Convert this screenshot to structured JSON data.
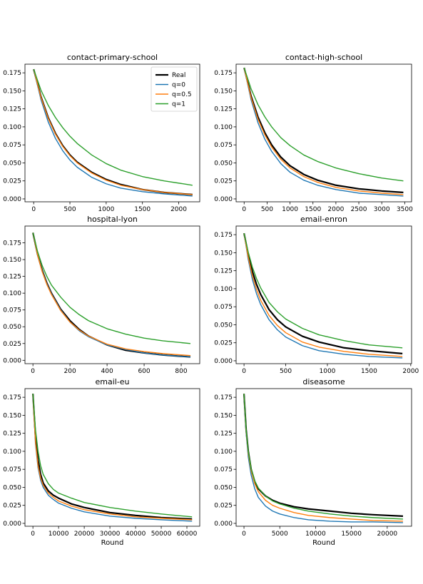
{
  "chart_data": [
    {
      "type": "line",
      "title": "contact-primary-school",
      "xlabel": "",
      "ylabel": "",
      "xlim": [
        -120,
        2290
      ],
      "ylim": [
        -0.004,
        0.187
      ],
      "xticks": [
        0,
        500,
        1000,
        1500,
        2000
      ],
      "xtick_labels": [
        "0",
        "500",
        "1000",
        "1500",
        "2000"
      ],
      "yticks": [
        0.0,
        0.025,
        0.05,
        0.075,
        0.1,
        0.125,
        0.15,
        0.175
      ],
      "ytick_labels": [
        "0.000",
        "0.025",
        "0.050",
        "0.075",
        "0.100",
        "0.125",
        "0.150",
        "0.175"
      ],
      "grid": false,
      "legend": "top-right",
      "series": [
        {
          "name": "Real",
          "color": "#000000",
          "x": [
            0,
            100,
            200,
            300,
            400,
            500,
            600,
            800,
            1000,
            1200,
            1500,
            1800,
            2190
          ],
          "y": [
            0.18,
            0.142,
            0.113,
            0.091,
            0.074,
            0.061,
            0.051,
            0.037,
            0.027,
            0.02,
            0.013,
            0.009,
            0.006
          ]
        },
        {
          "name": "q=0",
          "color": "#1f77b4",
          "x": [
            0,
            100,
            200,
            300,
            400,
            500,
            600,
            800,
            1000,
            1200,
            1500,
            1800,
            2190
          ],
          "y": [
            0.18,
            0.138,
            0.107,
            0.084,
            0.067,
            0.054,
            0.044,
            0.03,
            0.021,
            0.015,
            0.01,
            0.007,
            0.004
          ]
        },
        {
          "name": "q=0.5",
          "color": "#ff7f0e",
          "x": [
            0,
            100,
            200,
            300,
            400,
            500,
            600,
            800,
            1000,
            1200,
            1500,
            1800,
            2190
          ],
          "y": [
            0.18,
            0.141,
            0.112,
            0.09,
            0.073,
            0.06,
            0.05,
            0.036,
            0.026,
            0.019,
            0.013,
            0.009,
            0.006
          ]
        },
        {
          "name": "q=1",
          "color": "#2ca02c",
          "x": [
            0,
            100,
            200,
            300,
            400,
            500,
            600,
            800,
            1000,
            1200,
            1500,
            1800,
            2190
          ],
          "y": [
            0.18,
            0.151,
            0.13,
            0.113,
            0.099,
            0.087,
            0.077,
            0.061,
            0.049,
            0.04,
            0.031,
            0.025,
            0.019
          ]
        }
      ]
    },
    {
      "type": "line",
      "title": "contact-high-school",
      "xlabel": "",
      "ylabel": "",
      "xlim": [
        -175,
        3650
      ],
      "ylim": [
        -0.004,
        0.187
      ],
      "xticks": [
        0,
        500,
        1000,
        1500,
        2000,
        2500,
        3000,
        3500
      ],
      "xtick_labels": [
        "0",
        "500",
        "1000",
        "1500",
        "2000",
        "2500",
        "3000",
        "3500"
      ],
      "yticks": [
        0.0,
        0.025,
        0.05,
        0.075,
        0.1,
        0.125,
        0.15,
        0.175
      ],
      "ytick_labels": [
        "0.000",
        "0.025",
        "0.050",
        "0.075",
        "0.100",
        "0.125",
        "0.150",
        "0.175"
      ],
      "grid": false,
      "series": [
        {
          "name": "Real",
          "color": "#000000",
          "x": [
            0,
            150,
            300,
            450,
            600,
            800,
            1000,
            1300,
            1600,
            2000,
            2500,
            3000,
            3470
          ],
          "y": [
            0.182,
            0.143,
            0.114,
            0.092,
            0.075,
            0.058,
            0.046,
            0.034,
            0.026,
            0.019,
            0.014,
            0.011,
            0.009
          ]
        },
        {
          "name": "q=0",
          "color": "#1f77b4",
          "x": [
            0,
            150,
            300,
            450,
            600,
            800,
            1000,
            1300,
            1600,
            2000,
            2500,
            3000,
            3470
          ],
          "y": [
            0.182,
            0.138,
            0.106,
            0.083,
            0.066,
            0.049,
            0.037,
            0.026,
            0.019,
            0.013,
            0.008,
            0.006,
            0.004
          ]
        },
        {
          "name": "q=0.5",
          "color": "#ff7f0e",
          "x": [
            0,
            150,
            300,
            450,
            600,
            800,
            1000,
            1300,
            1600,
            2000,
            2500,
            3000,
            3470
          ],
          "y": [
            0.182,
            0.141,
            0.111,
            0.089,
            0.072,
            0.055,
            0.043,
            0.031,
            0.023,
            0.016,
            0.011,
            0.008,
            0.006
          ]
        },
        {
          "name": "q=1",
          "color": "#2ca02c",
          "x": [
            0,
            150,
            300,
            450,
            600,
            800,
            1000,
            1300,
            1600,
            2000,
            2500,
            3000,
            3470
          ],
          "y": [
            0.182,
            0.153,
            0.131,
            0.114,
            0.1,
            0.085,
            0.074,
            0.061,
            0.052,
            0.043,
            0.035,
            0.029,
            0.025
          ]
        }
      ]
    },
    {
      "type": "line",
      "title": "hospital-lyon",
      "xlabel": "",
      "ylabel": "",
      "xlim": [
        -43,
        900
      ],
      "ylim": [
        -0.005,
        0.2
      ],
      "xticks": [
        0,
        200,
        400,
        600,
        800
      ],
      "xtick_labels": [
        "0",
        "200",
        "400",
        "600",
        "800"
      ],
      "yticks": [
        0.0,
        0.025,
        0.05,
        0.075,
        0.1,
        0.125,
        0.15,
        0.175
      ],
      "ytick_labels": [
        "0.000",
        "0.025",
        "0.050",
        "0.075",
        "0.100",
        "0.125",
        "0.150",
        "0.175"
      ],
      "grid": false,
      "series": [
        {
          "name": "Real",
          "color": "#000000",
          "x": [
            0,
            25,
            50,
            75,
            100,
            150,
            200,
            250,
            300,
            400,
            500,
            600,
            700,
            850
          ],
          "y": [
            0.19,
            0.158,
            0.134,
            0.115,
            0.1,
            0.076,
            0.059,
            0.046,
            0.036,
            0.023,
            0.015,
            0.011,
            0.008,
            0.005
          ]
        },
        {
          "name": "q=0",
          "color": "#1f77b4",
          "x": [
            0,
            25,
            50,
            75,
            100,
            150,
            200,
            250,
            300,
            400,
            500,
            600,
            700,
            850
          ],
          "y": [
            0.19,
            0.158,
            0.133,
            0.114,
            0.099,
            0.075,
            0.057,
            0.044,
            0.035,
            0.023,
            0.016,
            0.011,
            0.008,
            0.005
          ]
        },
        {
          "name": "q=0.5",
          "color": "#ff7f0e",
          "x": [
            0,
            25,
            50,
            75,
            100,
            150,
            200,
            250,
            300,
            400,
            500,
            600,
            700,
            850
          ],
          "y": [
            0.19,
            0.157,
            0.132,
            0.113,
            0.098,
            0.074,
            0.057,
            0.045,
            0.036,
            0.024,
            0.017,
            0.013,
            0.01,
            0.007
          ]
        },
        {
          "name": "q=1",
          "color": "#2ca02c",
          "x": [
            0,
            25,
            50,
            75,
            100,
            150,
            200,
            250,
            300,
            400,
            500,
            600,
            700,
            850
          ],
          "y": [
            0.19,
            0.162,
            0.141,
            0.125,
            0.112,
            0.094,
            0.079,
            0.068,
            0.059,
            0.047,
            0.039,
            0.033,
            0.029,
            0.025
          ]
        }
      ]
    },
    {
      "type": "line",
      "title": "email-enron",
      "xlabel": "",
      "ylabel": "",
      "xlim": [
        -95,
        2010
      ],
      "ylim": [
        -0.004,
        0.187
      ],
      "xticks": [
        0,
        500,
        1000,
        1500,
        2000
      ],
      "xtick_labels": [
        "0",
        "500",
        "1000",
        "1500",
        "2000"
      ],
      "yticks": [
        0.0,
        0.025,
        0.05,
        0.075,
        0.1,
        0.125,
        0.15,
        0.175
      ],
      "ytick_labels": [
        "0.000",
        "0.025",
        "0.050",
        "0.075",
        "0.100",
        "0.125",
        "0.150",
        "0.175"
      ],
      "grid": false,
      "series": [
        {
          "name": "Real",
          "color": "#000000",
          "x": [
            0,
            50,
            100,
            150,
            200,
            300,
            400,
            500,
            700,
            900,
            1200,
            1500,
            1900
          ],
          "y": [
            0.177,
            0.148,
            0.124,
            0.106,
            0.092,
            0.071,
            0.057,
            0.047,
            0.034,
            0.026,
            0.018,
            0.014,
            0.01
          ]
        },
        {
          "name": "q=0",
          "color": "#1f77b4",
          "x": [
            0,
            50,
            100,
            150,
            200,
            300,
            400,
            500,
            700,
            900,
            1200,
            1500,
            1900
          ],
          "y": [
            0.177,
            0.141,
            0.113,
            0.093,
            0.078,
            0.057,
            0.043,
            0.033,
            0.021,
            0.014,
            0.009,
            0.006,
            0.004
          ]
        },
        {
          "name": "q=0.5",
          "color": "#ff7f0e",
          "x": [
            0,
            50,
            100,
            150,
            200,
            300,
            400,
            500,
            700,
            900,
            1200,
            1500,
            1900
          ],
          "y": [
            0.177,
            0.144,
            0.118,
            0.099,
            0.084,
            0.063,
            0.049,
            0.039,
            0.026,
            0.019,
            0.013,
            0.009,
            0.006
          ]
        },
        {
          "name": "q=1",
          "color": "#2ca02c",
          "x": [
            0,
            50,
            100,
            150,
            200,
            300,
            400,
            500,
            700,
            900,
            1200,
            1500,
            1900
          ],
          "y": [
            0.177,
            0.151,
            0.13,
            0.114,
            0.101,
            0.081,
            0.068,
            0.058,
            0.045,
            0.036,
            0.028,
            0.022,
            0.018
          ]
        }
      ]
    },
    {
      "type": "line",
      "title": "email-eu",
      "xlabel": "Round",
      "ylabel": "",
      "xlim": [
        -3100,
        65000
      ],
      "ylim": [
        -0.004,
        0.187
      ],
      "xticks": [
        0,
        10000,
        20000,
        30000,
        40000,
        50000,
        60000
      ],
      "xtick_labels": [
        "0",
        "10000",
        "20000",
        "30000",
        "40000",
        "50000",
        "60000"
      ],
      "yticks": [
        0.0,
        0.025,
        0.05,
        0.075,
        0.1,
        0.125,
        0.15,
        0.175
      ],
      "ytick_labels": [
        "0.000",
        "0.025",
        "0.050",
        "0.075",
        "0.100",
        "0.125",
        "0.150",
        "0.175"
      ],
      "grid": false,
      "series": [
        {
          "name": "Real",
          "color": "#000000",
          "x": [
            0,
            1000,
            2000,
            3000,
            4000,
            6000,
            8000,
            10000,
            15000,
            20000,
            30000,
            40000,
            50000,
            62000
          ],
          "y": [
            0.18,
            0.12,
            0.088,
            0.068,
            0.056,
            0.045,
            0.039,
            0.035,
            0.027,
            0.022,
            0.015,
            0.011,
            0.008,
            0.006
          ]
        },
        {
          "name": "q=0",
          "color": "#1f77b4",
          "x": [
            0,
            1000,
            2000,
            3000,
            4000,
            6000,
            8000,
            10000,
            15000,
            20000,
            30000,
            40000,
            50000,
            62000
          ],
          "y": [
            0.18,
            0.11,
            0.077,
            0.06,
            0.05,
            0.039,
            0.033,
            0.028,
            0.021,
            0.016,
            0.01,
            0.007,
            0.005,
            0.003
          ]
        },
        {
          "name": "q=0.5",
          "color": "#ff7f0e",
          "x": [
            0,
            1000,
            2000,
            3000,
            4000,
            6000,
            8000,
            10000,
            15000,
            20000,
            30000,
            40000,
            50000,
            62000
          ],
          "y": [
            0.18,
            0.113,
            0.08,
            0.063,
            0.053,
            0.042,
            0.036,
            0.031,
            0.024,
            0.019,
            0.013,
            0.009,
            0.007,
            0.005
          ]
        },
        {
          "name": "q=1",
          "color": "#2ca02c",
          "x": [
            0,
            1000,
            2000,
            3000,
            4000,
            6000,
            8000,
            10000,
            15000,
            20000,
            30000,
            40000,
            50000,
            62000
          ],
          "y": [
            0.18,
            0.13,
            0.1,
            0.08,
            0.068,
            0.055,
            0.047,
            0.042,
            0.035,
            0.029,
            0.022,
            0.017,
            0.013,
            0.009
          ]
        }
      ]
    },
    {
      "type": "line",
      "title": "diseasome",
      "xlabel": "Round",
      "ylabel": "",
      "xlim": [
        -1100,
        23400
      ],
      "ylim": [
        -0.004,
        0.187
      ],
      "xticks": [
        0,
        5000,
        10000,
        15000,
        20000
      ],
      "xtick_labels": [
        "0",
        "5000",
        "10000",
        "15000",
        "20000"
      ],
      "yticks": [
        0.0,
        0.025,
        0.05,
        0.075,
        0.1,
        0.125,
        0.15,
        0.175
      ],
      "ytick_labels": [
        "0.000",
        "0.025",
        "0.050",
        "0.075",
        "0.100",
        "0.125",
        "0.150",
        "0.175"
      ],
      "grid": false,
      "series": [
        {
          "name": "Real",
          "color": "#000000",
          "x": [
            0,
            300,
            600,
            1000,
            1500,
            2000,
            3000,
            4000,
            5000,
            7000,
            9000,
            12000,
            15000,
            18000,
            22200
          ],
          "y": [
            0.18,
            0.13,
            0.1,
            0.075,
            0.058,
            0.048,
            0.038,
            0.032,
            0.028,
            0.023,
            0.02,
            0.017,
            0.014,
            0.012,
            0.01
          ]
        },
        {
          "name": "q=0",
          "color": "#1f77b4",
          "x": [
            0,
            300,
            600,
            1000,
            1500,
            2000,
            3000,
            4000,
            5000,
            7000,
            9000,
            12000,
            15000,
            18000,
            22200
          ],
          "y": [
            0.18,
            0.125,
            0.092,
            0.067,
            0.048,
            0.036,
            0.024,
            0.017,
            0.013,
            0.008,
            0.005,
            0.003,
            0.002,
            0.002,
            0.001
          ]
        },
        {
          "name": "q=0.5",
          "color": "#ff7f0e",
          "x": [
            0,
            300,
            600,
            1000,
            1500,
            2000,
            3000,
            4000,
            5000,
            7000,
            9000,
            12000,
            15000,
            18000,
            22200
          ],
          "y": [
            0.18,
            0.128,
            0.097,
            0.073,
            0.055,
            0.044,
            0.032,
            0.025,
            0.021,
            0.015,
            0.011,
            0.008,
            0.006,
            0.004,
            0.003
          ]
        },
        {
          "name": "q=1",
          "color": "#2ca02c",
          "x": [
            0,
            300,
            600,
            1000,
            1500,
            2000,
            3000,
            4000,
            5000,
            7000,
            9000,
            12000,
            15000,
            18000,
            22200
          ],
          "y": [
            0.18,
            0.13,
            0.1,
            0.076,
            0.059,
            0.049,
            0.038,
            0.031,
            0.027,
            0.021,
            0.017,
            0.013,
            0.01,
            0.008,
            0.006
          ]
        }
      ]
    }
  ]
}
